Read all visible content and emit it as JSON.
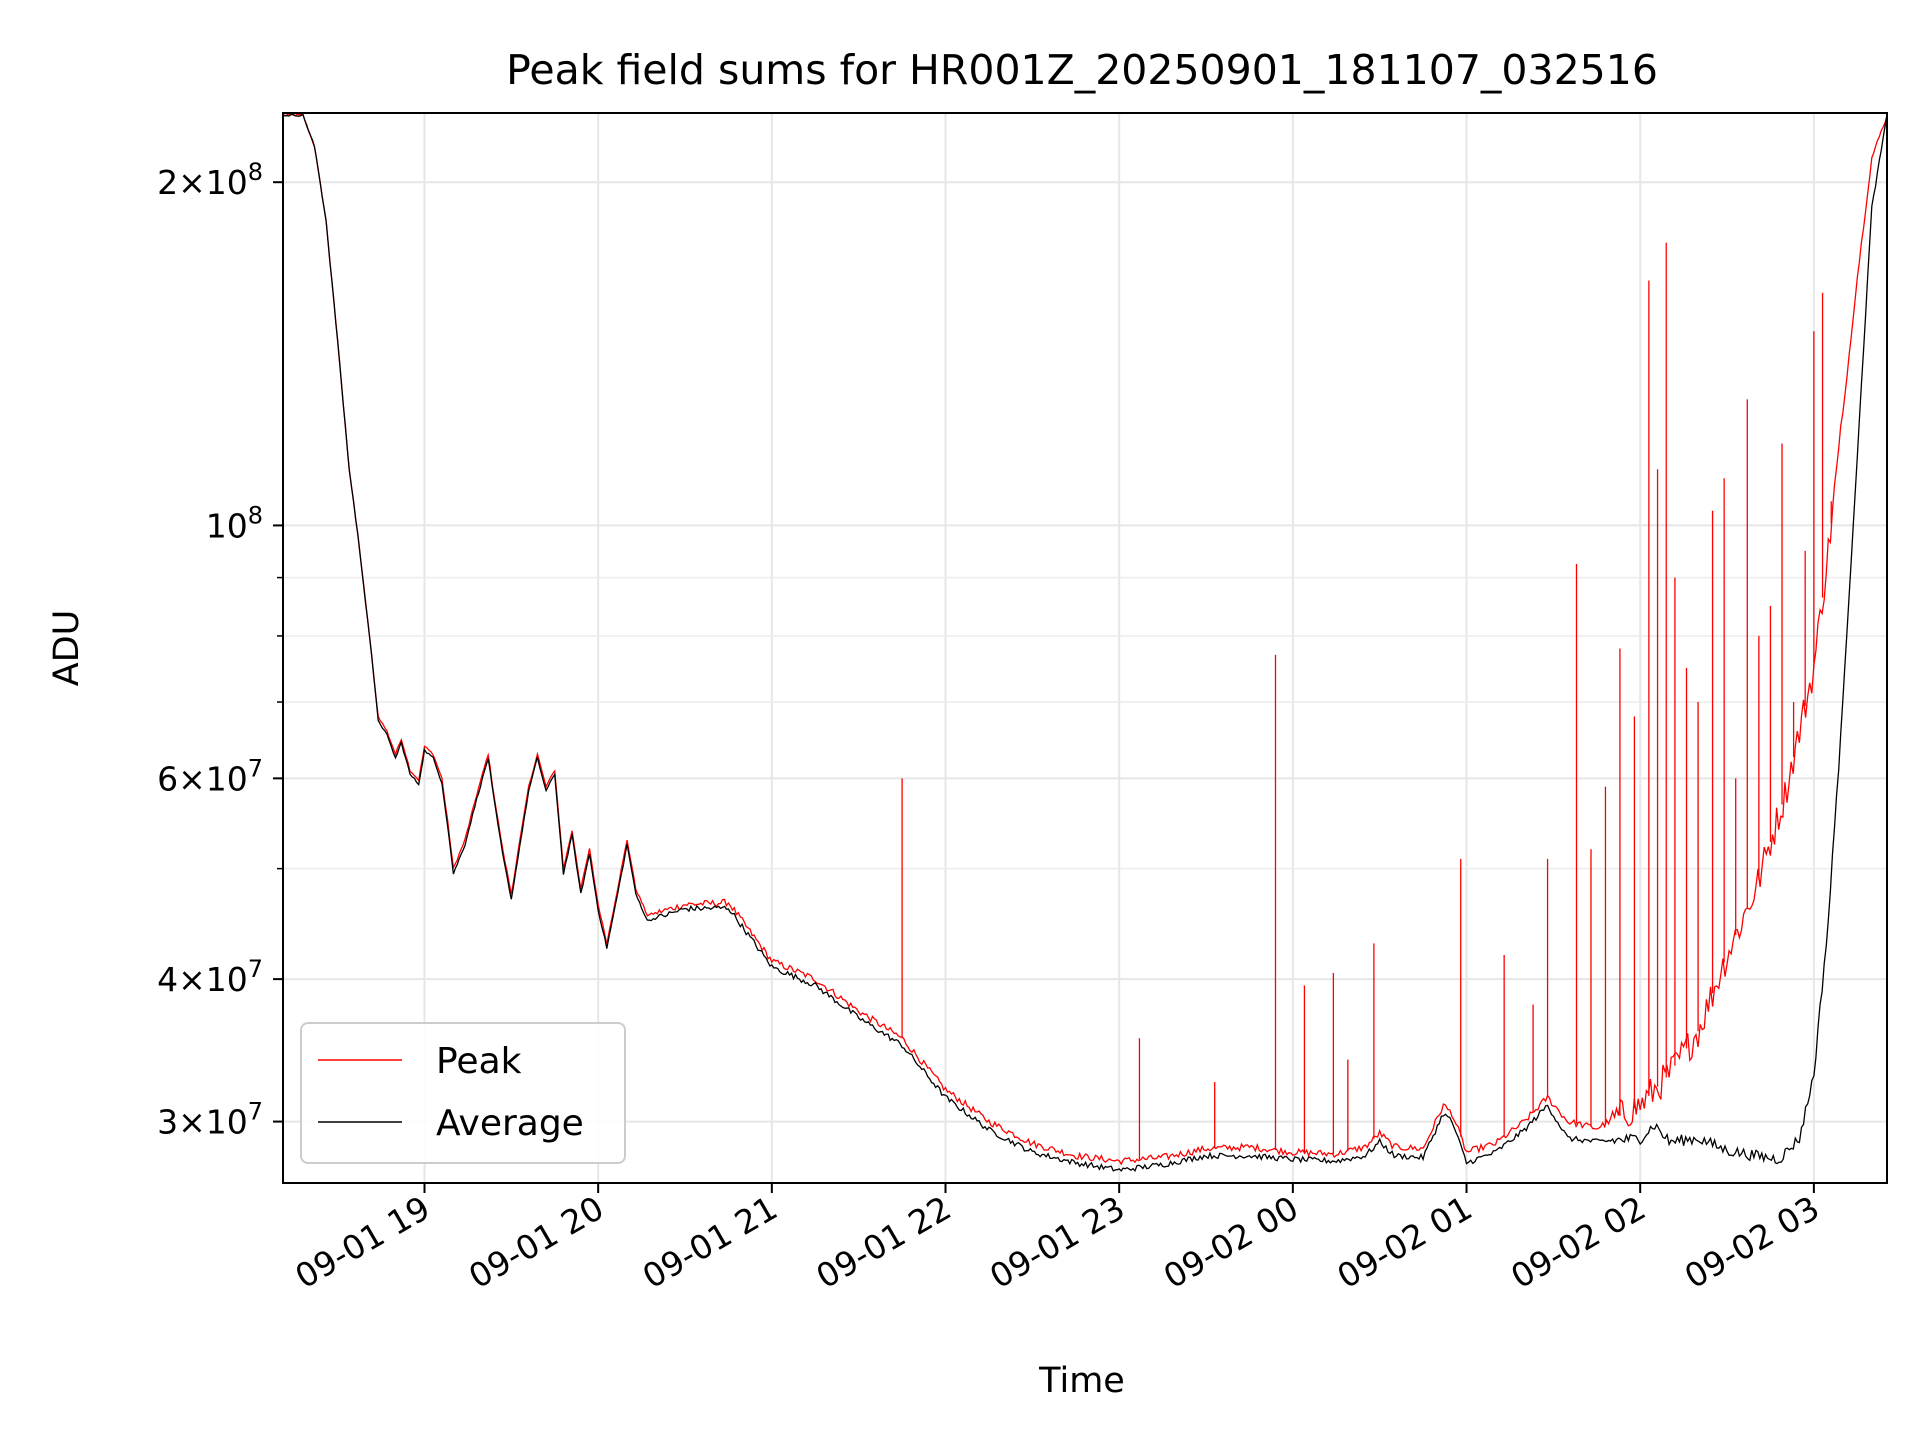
{
  "chart_data": {
    "type": "line",
    "title": "Peak field sums for HR001Z_20250901_181107_032516",
    "xlabel": "Time",
    "ylabel": "ADU",
    "y_scale": "log",
    "ylim": [
      26500000,
      230000000
    ],
    "xlim": [
      "2025-09-01 18:11:07",
      "2025-09-02 03:25:16"
    ],
    "grid": true,
    "legend_position": "lower-left",
    "x_ticks": [
      {
        "t": "2025-09-01 19:00",
        "label": "09-01 19"
      },
      {
        "t": "2025-09-01 20:00",
        "label": "09-01 20"
      },
      {
        "t": "2025-09-01 21:00",
        "label": "09-01 21"
      },
      {
        "t": "2025-09-01 22:00",
        "label": "09-01 22"
      },
      {
        "t": "2025-09-01 23:00",
        "label": "09-01 23"
      },
      {
        "t": "2025-09-02 00:00",
        "label": "09-02 00"
      },
      {
        "t": "2025-09-02 01:00",
        "label": "09-02 01"
      },
      {
        "t": "2025-09-02 02:00",
        "label": "09-02 02"
      },
      {
        "t": "2025-09-02 03:00",
        "label": "09-02 03"
      }
    ],
    "y_major_ticks": [
      {
        "value": 30000000,
        "mant": "3",
        "exp": "7"
      },
      {
        "value": 40000000,
        "mant": "4",
        "exp": "7"
      },
      {
        "value": 60000000,
        "mant": "6",
        "exp": "7"
      },
      {
        "value": 100000000,
        "mant": "",
        "exp": "8"
      },
      {
        "value": 200000000,
        "mant": "2",
        "exp": "8"
      }
    ],
    "y_minor_grid": [
      50000000,
      70000000,
      80000000,
      90000000
    ],
    "series": [
      {
        "name": "Peak",
        "color": "#ff0000",
        "points": [
          [
            "2025-09-01 18:11:07",
            229000000
          ],
          [
            "2025-09-01 18:18",
            229000000
          ],
          [
            "2025-09-01 18:22",
            215000000
          ],
          [
            "2025-09-01 18:26",
            185000000
          ],
          [
            "2025-09-01 18:30",
            145000000
          ],
          [
            "2025-09-01 18:34",
            112000000
          ],
          [
            "2025-09-01 18:37",
            98000000
          ],
          [
            "2025-09-01 18:41",
            80000000
          ],
          [
            "2025-09-01 18:44",
            68000000
          ],
          [
            "2025-09-01 18:47",
            66000000
          ],
          [
            "2025-09-01 18:50",
            63000000
          ],
          [
            "2025-09-01 18:52",
            65000000
          ],
          [
            "2025-09-01 18:55",
            61000000
          ],
          [
            "2025-09-01 18:58",
            59800000
          ],
          [
            "2025-09-01 19:00",
            64000000
          ],
          [
            "2025-09-01 19:03",
            63000000
          ],
          [
            "2025-09-01 19:06",
            60000000
          ],
          [
            "2025-09-01 19:08",
            55000000
          ],
          [
            "2025-09-01 19:10",
            50000000
          ],
          [
            "2025-09-01 19:14",
            53000000
          ],
          [
            "2025-09-01 19:18",
            58000000
          ],
          [
            "2025-09-01 19:22",
            63000000
          ],
          [
            "2025-09-01 19:24",
            58000000
          ],
          [
            "2025-09-01 19:27",
            52000000
          ],
          [
            "2025-09-01 19:30",
            47500000
          ],
          [
            "2025-09-01 19:33",
            53000000
          ],
          [
            "2025-09-01 19:36",
            59000000
          ],
          [
            "2025-09-01 19:39",
            63000000
          ],
          [
            "2025-09-01 19:42",
            59000000
          ],
          [
            "2025-09-01 19:45",
            61000000
          ],
          [
            "2025-09-01 19:48",
            50000000
          ],
          [
            "2025-09-01 19:51",
            54000000
          ],
          [
            "2025-09-01 19:54",
            48000000
          ],
          [
            "2025-09-01 19:57",
            52000000
          ],
          [
            "2025-09-01 20:00",
            46500000
          ],
          [
            "2025-09-01 20:03",
            43000000
          ],
          [
            "2025-09-01 20:06",
            47000000
          ],
          [
            "2025-09-01 20:10",
            53000000
          ],
          [
            "2025-09-01 20:13",
            48000000
          ],
          [
            "2025-09-01 20:17",
            45500000
          ],
          [
            "2025-09-01 20:30",
            46500000
          ],
          [
            "2025-09-01 20:45",
            46700000
          ],
          [
            "2025-09-01 21:00",
            41500000
          ],
          [
            "2025-09-01 21:15",
            40000000
          ],
          [
            "2025-09-01 21:30",
            37500000
          ],
          [
            "2025-09-01 21:45",
            35500000
          ],
          [
            "2025-09-01 22:00",
            32000000
          ],
          [
            "2025-09-01 22:15",
            30000000
          ],
          [
            "2025-09-01 22:30",
            28700000
          ],
          [
            "2025-09-01 22:45",
            28000000
          ],
          [
            "2025-09-01 23:00",
            27700000
          ],
          [
            "2025-09-01 23:15",
            27900000
          ],
          [
            "2025-09-01 23:30",
            28400000
          ],
          [
            "2025-09-01 23:45",
            28500000
          ],
          [
            "2025-09-02 00:00",
            28200000
          ],
          [
            "2025-09-02 00:15",
            28100000
          ],
          [
            "2025-09-02 00:25",
            28500000
          ],
          [
            "2025-09-02 00:30",
            29300000
          ],
          [
            "2025-09-02 00:35",
            28500000
          ],
          [
            "2025-09-02 00:45",
            28400000
          ],
          [
            "2025-09-02 00:52",
            31000000
          ],
          [
            "2025-09-02 00:55",
            30500000
          ],
          [
            "2025-09-02 01:00",
            28200000
          ],
          [
            "2025-09-02 01:10",
            28700000
          ],
          [
            "2025-09-02 01:20",
            30000000
          ],
          [
            "2025-09-02 01:28",
            31500000
          ],
          [
            "2025-09-02 01:35",
            30000000
          ],
          [
            "2025-09-02 01:45",
            29600000
          ],
          [
            "2025-09-02 02:00",
            31000000
          ],
          [
            "2025-09-02 02:10",
            33000000
          ],
          [
            "2025-09-02 02:20",
            36000000
          ],
          [
            "2025-09-02 02:30",
            42000000
          ],
          [
            "2025-09-02 02:40",
            48000000
          ],
          [
            "2025-09-02 02:50",
            58000000
          ],
          [
            "2025-09-02 03:00",
            75000000
          ],
          [
            "2025-09-02 03:05",
            95000000
          ],
          [
            "2025-09-02 03:10",
            125000000
          ],
          [
            "2025-09-02 03:15",
            165000000
          ],
          [
            "2025-09-02 03:20",
            210000000
          ],
          [
            "2025-09-02 03:25:16",
            229000000
          ]
        ],
        "spikes": [
          [
            "2025-09-01 21:45",
            60000000
          ],
          [
            "2025-09-01 23:07",
            35500000
          ],
          [
            "2025-09-01 23:33",
            32500000
          ],
          [
            "2025-09-01 23:54",
            77000000
          ],
          [
            "2025-09-02 00:04",
            39500000
          ],
          [
            "2025-09-02 00:14",
            40500000
          ],
          [
            "2025-09-02 00:19",
            34000000
          ],
          [
            "2025-09-02 00:28",
            43000000
          ],
          [
            "2025-09-02 00:58",
            51000000
          ],
          [
            "2025-09-02 01:13",
            42000000
          ],
          [
            "2025-09-02 01:23",
            38000000
          ],
          [
            "2025-09-02 01:28",
            51000000
          ],
          [
            "2025-09-02 01:38",
            92500000
          ],
          [
            "2025-09-02 01:43",
            52000000
          ],
          [
            "2025-09-02 01:48",
            59000000
          ],
          [
            "2025-09-02 01:53",
            78000000
          ],
          [
            "2025-09-02 01:58",
            68000000
          ],
          [
            "2025-09-02 02:03",
            164000000
          ],
          [
            "2025-09-02 02:06",
            112000000
          ],
          [
            "2025-09-02 02:09",
            177000000
          ],
          [
            "2025-09-02 02:12",
            90000000
          ],
          [
            "2025-09-02 02:16",
            75000000
          ],
          [
            "2025-09-02 02:20",
            70000000
          ],
          [
            "2025-09-02 02:25",
            103000000
          ],
          [
            "2025-09-02 02:29",
            110000000
          ],
          [
            "2025-09-02 02:33",
            60000000
          ],
          [
            "2025-09-02 02:37",
            129000000
          ],
          [
            "2025-09-02 02:41",
            80000000
          ],
          [
            "2025-09-02 02:45",
            85000000
          ],
          [
            "2025-09-02 02:49",
            118000000
          ],
          [
            "2025-09-02 02:53",
            70000000
          ],
          [
            "2025-09-02 02:57",
            95000000
          ],
          [
            "2025-09-02 03:00",
            148000000
          ],
          [
            "2025-09-02 03:03",
            160000000
          ],
          [
            "2025-09-02 03:06",
            105000000
          ]
        ]
      },
      {
        "name": "Average",
        "color": "#000000",
        "points": [
          [
            "2025-09-01 18:11:07",
            229000000
          ],
          [
            "2025-09-01 18:18",
            229000000
          ],
          [
            "2025-09-01 18:22",
            215000000
          ],
          [
            "2025-09-01 18:26",
            185000000
          ],
          [
            "2025-09-01 18:30",
            145000000
          ],
          [
            "2025-09-01 18:34",
            112000000
          ],
          [
            "2025-09-01 18:37",
            98000000
          ],
          [
            "2025-09-01 18:41",
            80000000
          ],
          [
            "2025-09-01 18:44",
            67500000
          ],
          [
            "2025-09-01 18:47",
            65500000
          ],
          [
            "2025-09-01 18:50",
            62500000
          ],
          [
            "2025-09-01 18:52",
            64500000
          ],
          [
            "2025-09-01 18:55",
            60500000
          ],
          [
            "2025-09-01 18:58",
            59300000
          ],
          [
            "2025-09-01 19:00",
            63500000
          ],
          [
            "2025-09-01 19:03",
            62500000
          ],
          [
            "2025-09-01 19:06",
            59500000
          ],
          [
            "2025-09-01 19:08",
            54500000
          ],
          [
            "2025-09-01 19:10",
            49500000
          ],
          [
            "2025-09-01 19:14",
            52500000
          ],
          [
            "2025-09-01 19:18",
            57500000
          ],
          [
            "2025-09-01 19:22",
            62500000
          ],
          [
            "2025-09-01 19:24",
            57500000
          ],
          [
            "2025-09-01 19:27",
            51500000
          ],
          [
            "2025-09-01 19:30",
            47000000
          ],
          [
            "2025-09-01 19:33",
            52500000
          ],
          [
            "2025-09-01 19:36",
            58500000
          ],
          [
            "2025-09-01 19:39",
            62500000
          ],
          [
            "2025-09-01 19:42",
            58500000
          ],
          [
            "2025-09-01 19:45",
            60500000
          ],
          [
            "2025-09-01 19:48",
            49500000
          ],
          [
            "2025-09-01 19:51",
            53500000
          ],
          [
            "2025-09-01 19:54",
            47500000
          ],
          [
            "2025-09-01 19:57",
            51500000
          ],
          [
            "2025-09-01 20:00",
            46000000
          ],
          [
            "2025-09-01 20:03",
            42600000
          ],
          [
            "2025-09-01 20:06",
            46500000
          ],
          [
            "2025-09-01 20:10",
            52500000
          ],
          [
            "2025-09-01 20:13",
            47500000
          ],
          [
            "2025-09-01 20:17",
            45000000
          ],
          [
            "2025-09-01 20:30",
            46100000
          ],
          [
            "2025-09-01 20:45",
            46200000
          ],
          [
            "2025-09-01 21:00",
            41000000
          ],
          [
            "2025-09-01 21:15",
            39500000
          ],
          [
            "2025-09-01 21:30",
            37000000
          ],
          [
            "2025-09-01 21:45",
            35000000
          ],
          [
            "2025-09-01 22:00",
            31500000
          ],
          [
            "2025-09-01 22:15",
            29500000
          ],
          [
            "2025-09-01 22:30",
            28200000
          ],
          [
            "2025-09-01 22:45",
            27600000
          ],
          [
            "2025-09-01 23:00",
            27200000
          ],
          [
            "2025-09-01 23:15",
            27500000
          ],
          [
            "2025-09-01 23:30",
            28000000
          ],
          [
            "2025-09-01 23:45",
            28000000
          ],
          [
            "2025-09-02 00:00",
            27800000
          ],
          [
            "2025-09-02 00:15",
            27700000
          ],
          [
            "2025-09-02 00:25",
            28000000
          ],
          [
            "2025-09-02 00:30",
            28800000
          ],
          [
            "2025-09-02 00:35",
            28000000
          ],
          [
            "2025-09-02 00:45",
            27900000
          ],
          [
            "2025-09-02 00:52",
            30500000
          ],
          [
            "2025-09-02 00:55",
            30000000
          ],
          [
            "2025-09-02 01:00",
            27600000
          ],
          [
            "2025-09-02 01:10",
            28200000
          ],
          [
            "2025-09-02 01:20",
            29500000
          ],
          [
            "2025-09-02 01:28",
            31000000
          ],
          [
            "2025-09-02 01:35",
            29000000
          ],
          [
            "2025-09-02 01:45",
            28800000
          ],
          [
            "2025-09-02 02:00",
            29000000
          ],
          [
            "2025-09-02 02:05",
            29800000
          ],
          [
            "2025-09-02 02:10",
            28800000
          ],
          [
            "2025-09-02 02:20",
            29000000
          ],
          [
            "2025-09-02 02:30",
            28300000
          ],
          [
            "2025-09-02 02:40",
            28000000
          ],
          [
            "2025-09-02 02:48",
            27800000
          ],
          [
            "2025-09-02 02:55",
            29000000
          ],
          [
            "2025-09-02 03:00",
            33000000
          ],
          [
            "2025-09-02 03:05",
            45000000
          ],
          [
            "2025-09-02 03:10",
            70000000
          ],
          [
            "2025-09-02 03:15",
            115000000
          ],
          [
            "2025-09-02 03:20",
            190000000
          ],
          [
            "2025-09-02 03:25:16",
            229000000
          ]
        ]
      }
    ]
  }
}
